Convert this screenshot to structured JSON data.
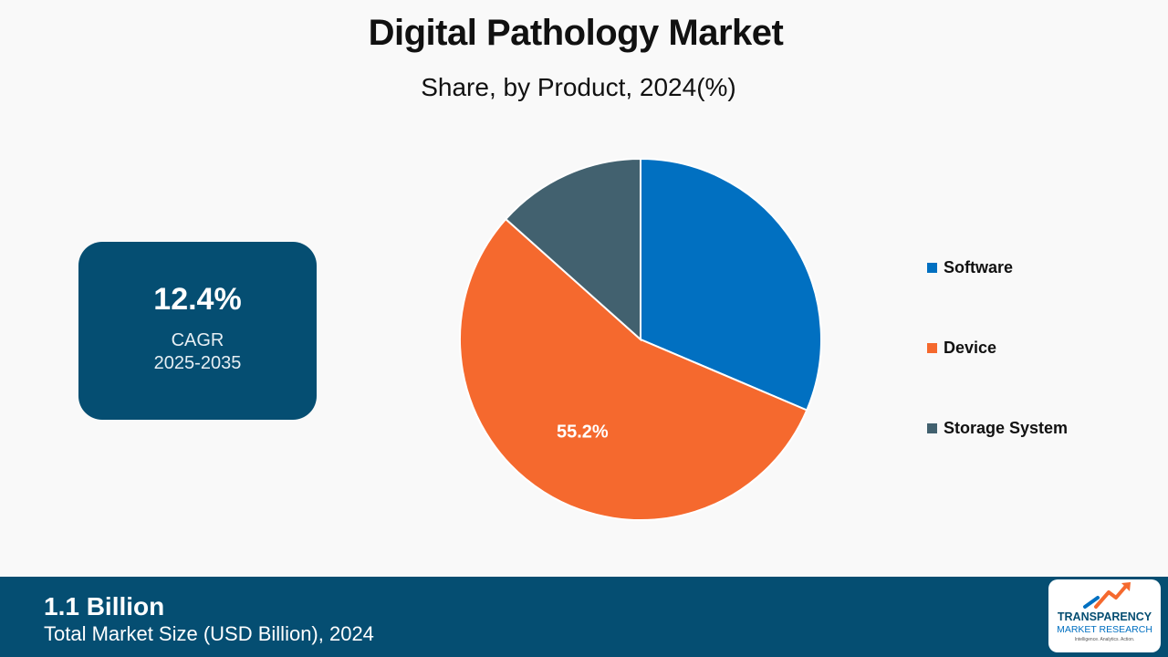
{
  "title": "Digital Pathology Market",
  "subtitle": "Share, by Product, 2024(%)",
  "cagr": {
    "value": "12.4%",
    "label": "CAGR",
    "range": "2025-2035"
  },
  "footer": {
    "value": "1.1 Billion",
    "label": "Total Market Size (USD Billion), 2024"
  },
  "logo": {
    "line1": "TRANSPARENCY",
    "line2": "MARKET RESEARCH",
    "tagline": "Intelligence. Analytics. Action."
  },
  "chart_data": {
    "type": "pie",
    "title": "Digital Pathology Market",
    "subtitle": "Share, by Product, 2024(%)",
    "categories": [
      "Software",
      "Device",
      "Storage System"
    ],
    "values": [
      31.4,
      55.2,
      13.4
    ],
    "colors": [
      "#0170c1",
      "#f5692e",
      "#42616f"
    ],
    "data_labels": [
      "",
      "55.2%",
      ""
    ],
    "legend_position": "right"
  }
}
